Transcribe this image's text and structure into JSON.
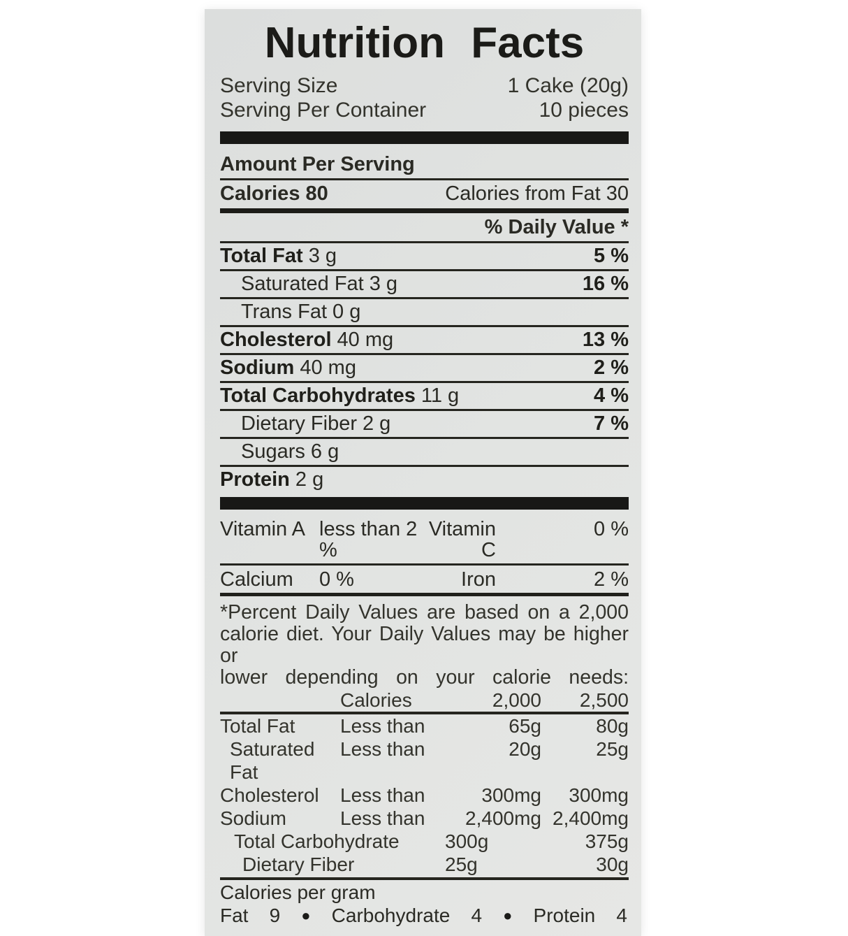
{
  "label": {
    "title": "Nutrition Facts",
    "serving": {
      "size_label": "Serving Size",
      "size_value": "1 Cake (20g)",
      "per_container_label": "Serving Per Container",
      "per_container_value": "10 pieces"
    },
    "amount_per_serving": "Amount Per Serving",
    "calories": {
      "label": "Calories 80",
      "from_fat": "Calories from Fat 30"
    },
    "daily_value_header": "% Daily Value *",
    "nutrients": [
      {
        "name": "Total Fat",
        "amount": "3 g",
        "dv": "5 %"
      },
      {
        "name": "Saturated Fat",
        "amount": "3 g",
        "dv": "16 %"
      },
      {
        "name": "Trans Fat",
        "amount": "0 g",
        "dv": ""
      },
      {
        "name": "Cholesterol",
        "amount": "40 mg",
        "dv": "13 %"
      },
      {
        "name": "Sodium",
        "amount": "40 mg",
        "dv": "2 %"
      },
      {
        "name": "Total Carbohydrates",
        "amount": "11 g",
        "dv": "4 %"
      },
      {
        "name": "Dietary Fiber",
        "amount": "2 g",
        "dv": "7 %"
      },
      {
        "name": "Sugars",
        "amount": "6 g",
        "dv": ""
      },
      {
        "name": "Protein",
        "amount": "2 g",
        "dv": ""
      }
    ],
    "vitamins": {
      "row1": {
        "c1": "Vitamin A",
        "c2": "less than 2 %",
        "c3": "Vitamin C",
        "c4": "0 %"
      },
      "row2": {
        "c1": "Calcium",
        "c2": "0 %",
        "c3": "Iron",
        "c4": "2 %"
      }
    },
    "footnote_lines": [
      "*Percent Daily Values are based on a 2,000",
      "calorie diet. Your Daily Values may be higher or",
      "lower depending on your calorie needs:"
    ],
    "dv_table": {
      "header": {
        "col2": "Calories",
        "col3": "2,000",
        "col4": "2,500"
      },
      "rows": [
        {
          "name": "Total Fat",
          "qualifier": "Less than",
          "v2000": "65g",
          "v2500": "80g"
        },
        {
          "name": "Saturated Fat",
          "qualifier": "Less than",
          "v2000": "20g",
          "v2500": "25g"
        },
        {
          "name": "Cholesterol",
          "qualifier": "Less than",
          "v2000": "300mg",
          "v2500": "300mg"
        },
        {
          "name": "Sodium",
          "qualifier": "Less than",
          "v2000": "2,400mg",
          "v2500": "2,400mg"
        },
        {
          "name": "Total Carbohydrate",
          "qualifier": "",
          "v2000": "300g",
          "v2500": "375g"
        },
        {
          "name": "Dietary Fiber",
          "qualifier": "",
          "v2000": "25g",
          "v2500": "30g"
        }
      ]
    },
    "calories_per_gram": {
      "heading": "Calories per gram",
      "items": [
        "Fat",
        "9",
        "●",
        "Carbohydrate",
        "4",
        "●",
        "Protein",
        "4"
      ]
    },
    "colors": {
      "label_background": "#e0e2e1",
      "ink": "#26261f",
      "page_background": "#ffffff"
    }
  }
}
